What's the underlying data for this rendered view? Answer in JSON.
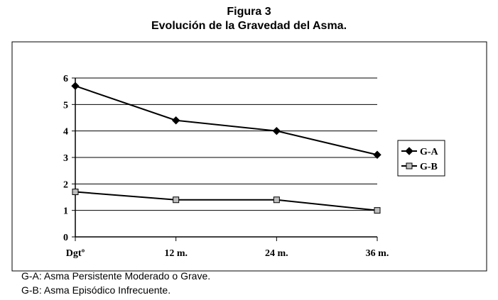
{
  "figure": {
    "title_line1": "Figura 3",
    "title_line2": "Evolución de la Gravedad del Asma."
  },
  "chart_data": {
    "type": "line",
    "categories": [
      "Dgtº",
      "12 m.",
      "24 m.",
      "36 m."
    ],
    "series": [
      {
        "name": "G-A",
        "values": [
          5.7,
          4.4,
          4.0,
          3.1
        ],
        "color": "#000000",
        "marker": "diamond"
      },
      {
        "name": "G-B",
        "values": [
          1.7,
          1.4,
          1.4,
          1.0
        ],
        "color": "#000000",
        "marker": "square"
      }
    ],
    "ylim": [
      0,
      6
    ],
    "yticks": [
      0,
      1,
      2,
      3,
      4,
      5,
      6
    ],
    "grid": true,
    "legend_position": "right"
  },
  "captions": {
    "a": "G-A: Asma Persistente Moderado o Grave.",
    "b": "G-B: Asma Episódico Infrecuente."
  }
}
